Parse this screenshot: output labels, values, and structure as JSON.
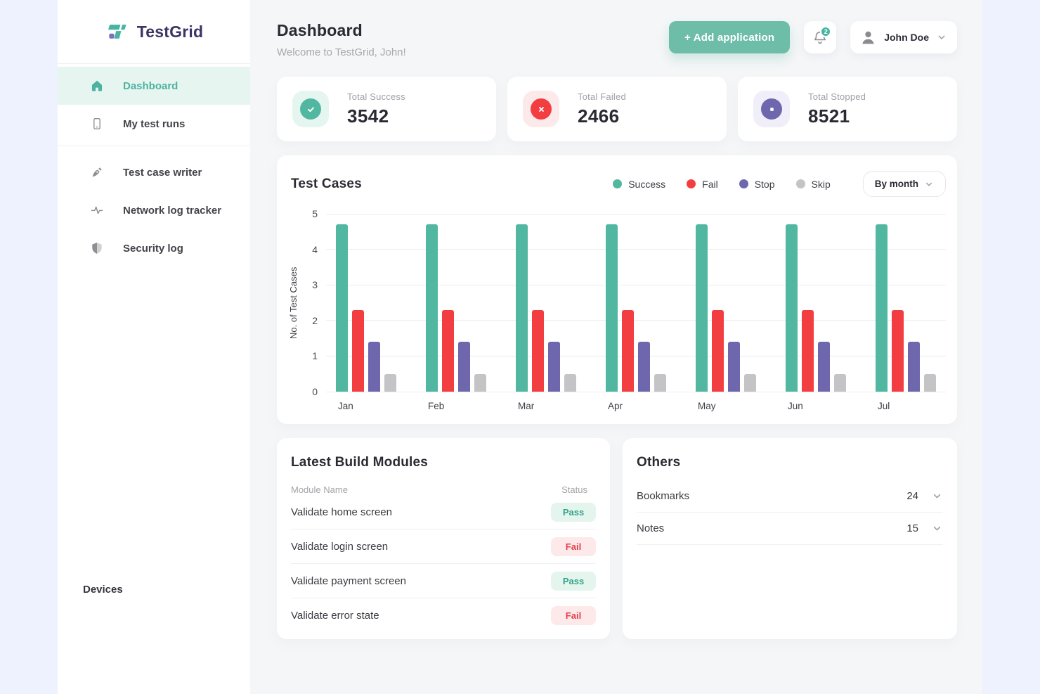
{
  "brand": {
    "name": "TestGrid"
  },
  "sidebar": {
    "items": [
      {
        "id": "dashboard",
        "label": "Dashboard",
        "icon": "home-icon",
        "active": true,
        "section": 1
      },
      {
        "id": "my-test-runs",
        "label": "My test runs",
        "icon": "mobile-icon",
        "active": false,
        "section": 1
      },
      {
        "id": "test-case-writer",
        "label": "Test case writer",
        "icon": "pen-icon",
        "active": false,
        "section": 2
      },
      {
        "id": "network-log-tracker",
        "label": "Network log tracker",
        "icon": "activity-icon",
        "active": false,
        "section": 2
      },
      {
        "id": "security-log",
        "label": "Security log",
        "icon": "shield-icon",
        "active": false,
        "section": 2
      }
    ],
    "footer_item": {
      "label": "Devices"
    }
  },
  "header": {
    "title": "Dashboard",
    "subtitle": "Welcome to TestGrid, John!",
    "add_button_label": "+ Add application",
    "notification_count": "2",
    "user_name": "John Doe"
  },
  "stats": [
    {
      "label": "Total Success",
      "value": "3542",
      "icon": "check-circle-icon",
      "color": "#52B7A0",
      "tile_bg": "#E5F5F0"
    },
    {
      "label": "Total Failed",
      "value": "2466",
      "icon": "x-circle-icon",
      "color": "#F23E41",
      "tile_bg": "#FCE9E9"
    },
    {
      "label": "Total Stopped",
      "value": "8521",
      "icon": "stop-circle-icon",
      "color": "#6F67AE",
      "tile_bg": "#EFEEF9"
    }
  ],
  "chart_card": {
    "title": "Test Cases",
    "filter_label": "By month",
    "legend": [
      {
        "label": "Success",
        "color": "#52B7A0"
      },
      {
        "label": "Fail",
        "color": "#F23E41"
      },
      {
        "label": "Stop",
        "color": "#6F67AE"
      },
      {
        "label": "Skip",
        "color": "#C4C4C6"
      }
    ]
  },
  "chart_data": {
    "type": "bar",
    "title": "Test Cases",
    "categories": [
      "Jan",
      "Feb",
      "Mar",
      "Apr",
      "May",
      "Jun",
      "Jul"
    ],
    "series": [
      {
        "name": "Success",
        "color": "#52B7A0",
        "values": [
          4.7,
          4.7,
          4.7,
          4.7,
          4.7,
          4.7,
          4.7
        ]
      },
      {
        "name": "Fail",
        "color": "#F23E41",
        "values": [
          2.3,
          2.3,
          2.3,
          2.3,
          2.3,
          2.3,
          2.3
        ]
      },
      {
        "name": "Stop",
        "color": "#6F67AE",
        "values": [
          1.4,
          1.4,
          1.4,
          1.4,
          1.4,
          1.4,
          1.4
        ]
      },
      {
        "name": "Skip",
        "color": "#C4C4C6",
        "values": [
          0.5,
          0.5,
          0.5,
          0.5,
          0.5,
          0.5,
          0.5
        ]
      }
    ],
    "xlabel": "",
    "ylabel": "No. of Test Cases",
    "ylim": [
      0,
      5
    ],
    "yticks": [
      0,
      1,
      2,
      3,
      4,
      5
    ],
    "grid": true,
    "legend_position": "top-right"
  },
  "modules_card": {
    "title": "Latest Build Modules",
    "columns": [
      "Module Name",
      "Status"
    ],
    "rows": [
      {
        "name": "Validate home screen",
        "status": "Pass"
      },
      {
        "name": "Validate login screen",
        "status": "Fail"
      },
      {
        "name": "Validate payment screen",
        "status": "Pass"
      },
      {
        "name": "Validate error state",
        "status": "Fail"
      }
    ]
  },
  "others_card": {
    "title": "Others",
    "rows": [
      {
        "label": "Bookmarks",
        "value": "24"
      },
      {
        "label": "Notes",
        "value": "15"
      }
    ]
  },
  "colors": {
    "accent_teal": "#52B7A0",
    "status_red": "#F23E41",
    "status_purple": "#6F67AE",
    "status_gray": "#C4C4C6",
    "page_bg": "#EEF1FE",
    "main_bg": "#F5F6F8"
  }
}
